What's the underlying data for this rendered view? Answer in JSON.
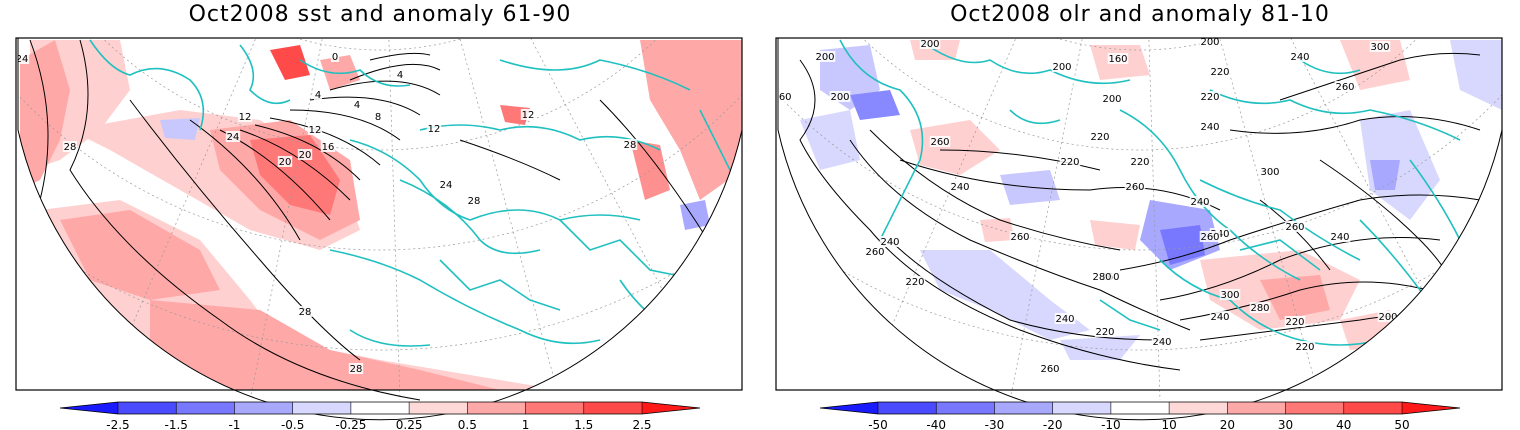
{
  "panels": [
    {
      "id": "sst",
      "title": "Oct2008 sst and anomaly 61-90",
      "colorbar": {
        "labels": [
          "-2.5",
          "-1.5",
          "-1",
          "-0.5",
          "-0.25",
          "0.25",
          "0.5",
          "1",
          "1.5",
          "2.5"
        ],
        "colors": [
          "#1a1aff",
          "#4a4aff",
          "#7878ff",
          "#a8a8ff",
          "#d8d8ff",
          "#ffffff",
          "#ffd8d8",
          "#ffa8a8",
          "#ff7878",
          "#ff4a4a",
          "#ff1a1a"
        ]
      },
      "contour_labels": [
        "24",
        "28",
        "0",
        "4",
        "4",
        "4",
        "8",
        "12",
        "12",
        "16",
        "20",
        "24",
        "20",
        "24",
        "28",
        "28",
        "12",
        "12",
        "28",
        "28"
      ]
    },
    {
      "id": "olr",
      "title": "Oct2008 olr and anomaly 81-10",
      "colorbar": {
        "labels": [
          "-50",
          "-40",
          "-30",
          "-20",
          "-10",
          "10",
          "20",
          "30",
          "40",
          "50"
        ],
        "colors": [
          "#1a1aff",
          "#4a4aff",
          "#7878ff",
          "#a8a8ff",
          "#d8d8ff",
          "#ffffff",
          "#ffd8d8",
          "#ffa8a8",
          "#ff7878",
          "#ff4a4a",
          "#ff1a1a"
        ]
      },
      "contour_labels": [
        "260",
        "200",
        "200",
        "200",
        "200",
        "160",
        "200",
        "200",
        "240",
        "260",
        "220",
        "300",
        "220",
        "240",
        "220",
        "260",
        "220",
        "220",
        "240",
        "260",
        "240",
        "260",
        "260",
        "240",
        "300",
        "260",
        "240",
        "240",
        "260",
        "280",
        "220",
        "300",
        "260",
        "280",
        "240",
        "240",
        "220",
        "200",
        "240",
        "220",
        "260",
        "220"
      ]
    }
  ]
}
